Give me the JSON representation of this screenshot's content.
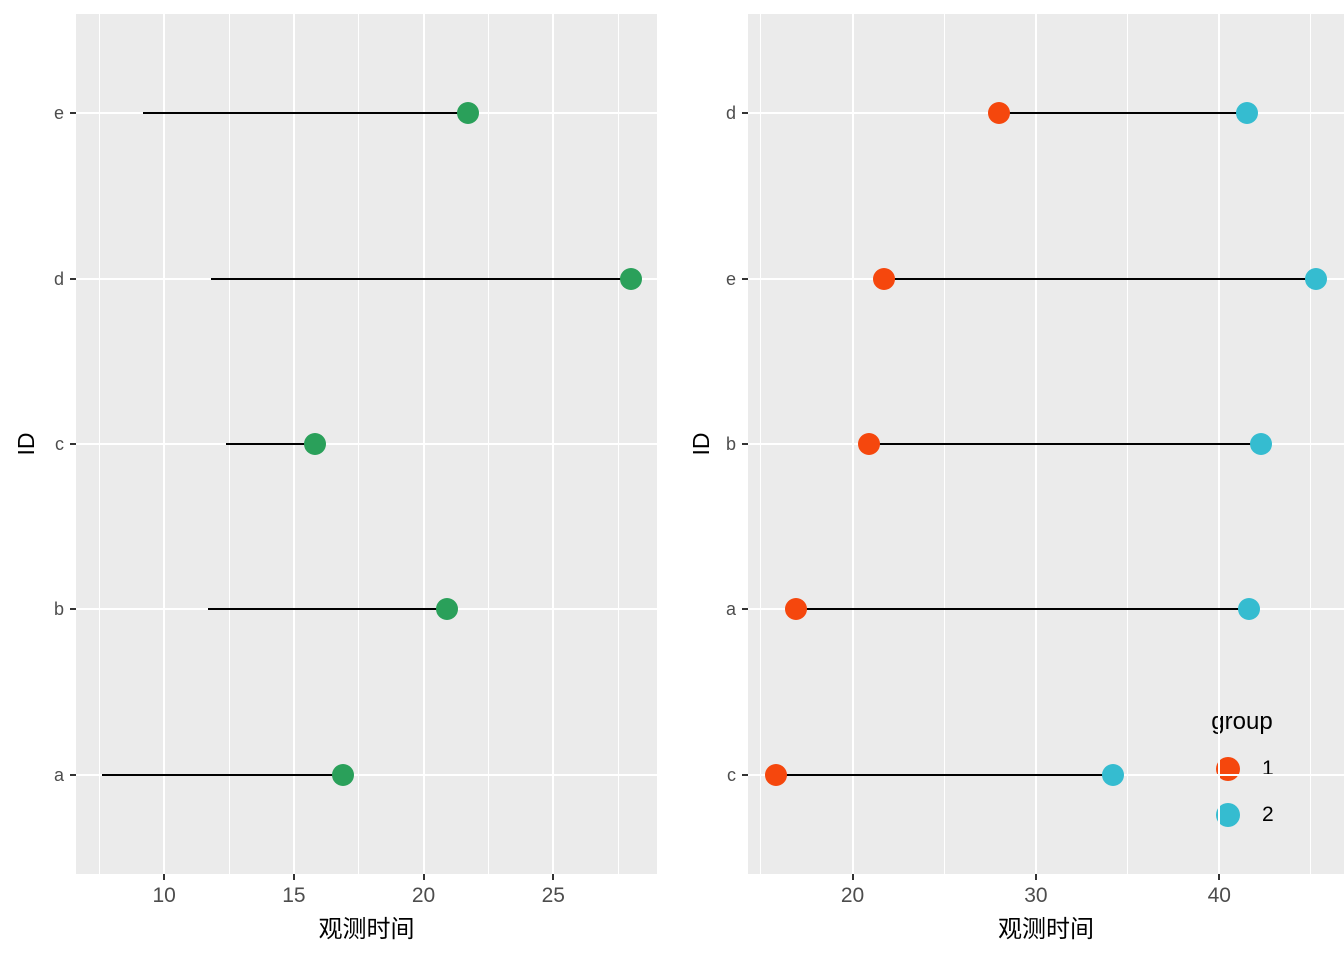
{
  "figure": {
    "background": "#FFFFFF",
    "panel_background": "#EBEBEB",
    "grid_color": "#FFFFFF",
    "tick_mark_color": "#333333",
    "tick_label_color": "#4D4D4D",
    "axis_title_color": "#000000",
    "segment_color": "#000000"
  },
  "chart_data": [
    {
      "type": "dumbbell",
      "panel": "left",
      "title": "",
      "xlabel": "观测时间",
      "ylabel": "ID",
      "x_ticks": [
        10,
        15,
        20,
        25
      ],
      "x_minor_ticks": [
        7.5,
        12.5,
        17.5,
        22.5,
        27.5
      ],
      "xlim": [
        6.6,
        29.0
      ],
      "grid": true,
      "categories_bottom_to_top": [
        "a",
        "b",
        "c",
        "d",
        "e"
      ],
      "point_color": "#2AA05A",
      "point_at": "end",
      "rows": [
        {
          "id": "a",
          "start": 7.6,
          "end": 16.9
        },
        {
          "id": "b",
          "start": 11.7,
          "end": 20.9
        },
        {
          "id": "c",
          "start": 12.4,
          "end": 15.8
        },
        {
          "id": "d",
          "start": 11.8,
          "end": 28.0
        },
        {
          "id": "e",
          "start": 9.2,
          "end": 21.7
        }
      ]
    },
    {
      "type": "dumbbell",
      "panel": "right",
      "title": "",
      "xlabel": "观测时间",
      "ylabel": "ID",
      "x_ticks": [
        20,
        30,
        40
      ],
      "x_minor_ticks": [
        15,
        25,
        35,
        45
      ],
      "xlim": [
        14.3,
        46.8
      ],
      "grid": true,
      "categories_bottom_to_top": [
        "c",
        "a",
        "b",
        "e",
        "d"
      ],
      "group_colors": {
        "1": "#F5470D",
        "2": "#35BCD0"
      },
      "rows": [
        {
          "id": "c",
          "group1": 15.8,
          "group2": 34.2
        },
        {
          "id": "a",
          "group1": 16.9,
          "group2": 41.6
        },
        {
          "id": "b",
          "group1": 20.9,
          "group2": 42.3
        },
        {
          "id": "e",
          "group1": 21.7,
          "group2": 45.3
        },
        {
          "id": "d",
          "group1": 28.0,
          "group2": 41.5
        }
      ],
      "legend": {
        "title": "group",
        "position": "inside-bottom-right",
        "items": [
          {
            "label": "1",
            "color": "#F5470D"
          },
          {
            "label": "2",
            "color": "#35BCD0"
          }
        ]
      }
    }
  ]
}
